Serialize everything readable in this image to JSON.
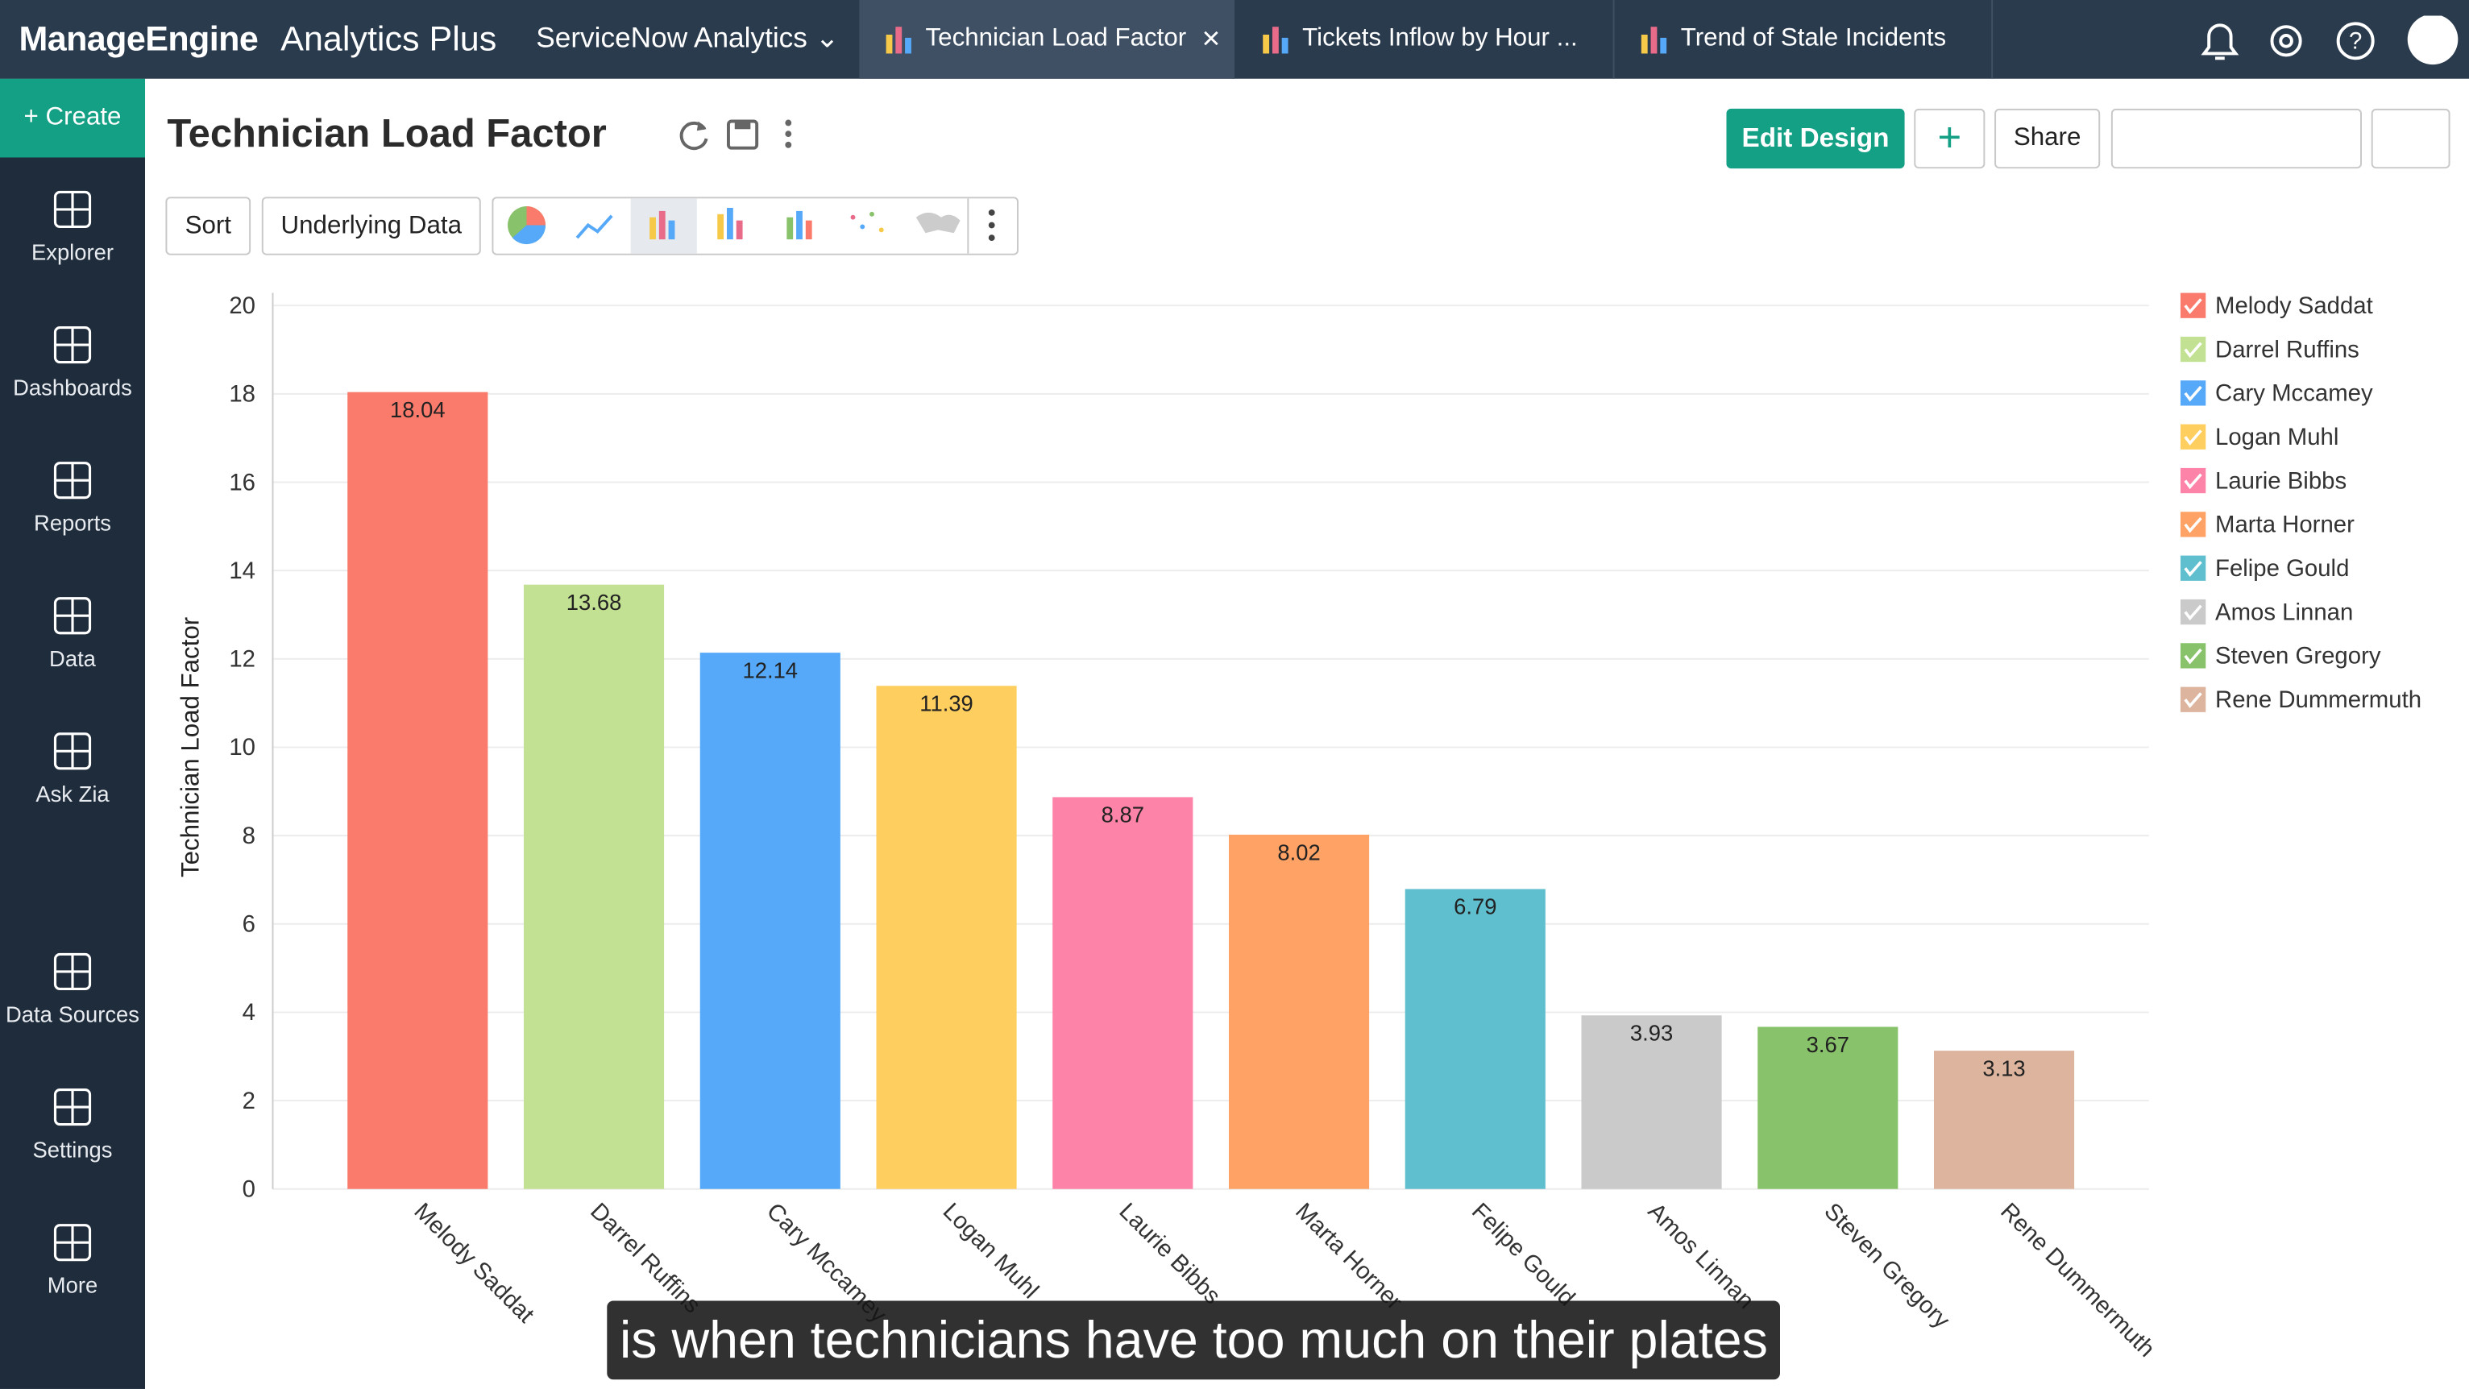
{
  "header": {
    "brand": "ManageEngine",
    "product": "Analytics Plus",
    "workspace": "ServiceNow Analytics",
    "tabs": [
      "Technician Load Factor",
      "Tickets Inflow by Hour ...",
      "Trend of Stale Incidents"
    ]
  },
  "sidebar": {
    "create": "Create",
    "items": [
      "Explorer",
      "Dashboards",
      "Reports",
      "Data",
      "Ask Zia",
      "Data Sources",
      "Settings",
      "More"
    ]
  },
  "toolbar": {
    "sort": "Sort",
    "underlying_data": "Underlying Data"
  },
  "actions": {
    "edit_design": "Edit Design",
    "share": "Share"
  },
  "chart_data": {
    "type": "bar",
    "title": "Technician Load Factor",
    "y_label": "Technician Load Factor",
    "categories": [
      "Melody Saddat",
      "Darrel Ruffins",
      "Cary Mccamey",
      "Logan Muhl",
      "Laurie Bibbs",
      "Marta Horner",
      "Felipe Gould",
      "Amos Linnan",
      "Steven Gregory",
      "Rene Dummermuth"
    ],
    "values": [
      18.04,
      13.68,
      12.14,
      11.39,
      8.87,
      8.02,
      6.79,
      3.93,
      3.67,
      3.13
    ],
    "colors": [
      "#fa7b6b",
      "#c2e192",
      "#56a9f9",
      "#fecf5f",
      "#fd84a8",
      "#fea266",
      "#60bfcf",
      "#cacaca",
      "#88c26a",
      "#ddb59f"
    ],
    "ylim": [
      0,
      20
    ],
    "yticks": [
      0,
      2,
      4,
      6,
      8,
      10,
      12,
      14,
      16,
      18,
      20
    ],
    "grid": true,
    "legend": "right"
  },
  "caption": {
    "text": "is when technicians have too much on their plates"
  }
}
